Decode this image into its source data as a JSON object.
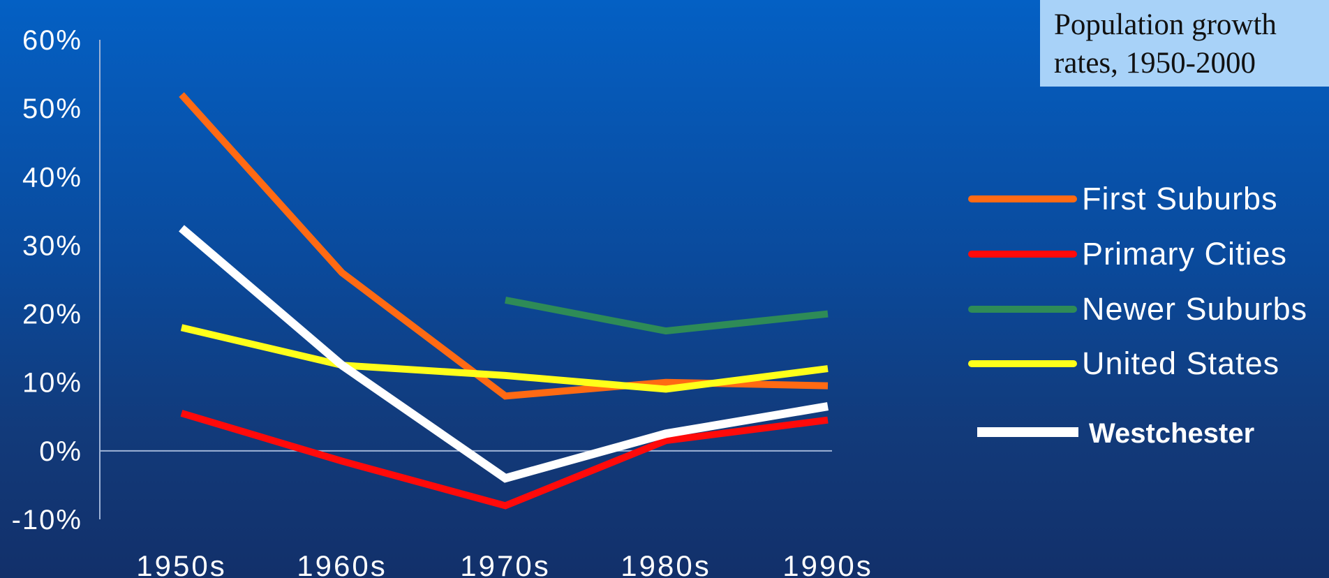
{
  "chart_data": {
    "type": "line",
    "title": "Population growth rates, 1950-2000",
    "title_lines": [
      "Population growth",
      "rates, 1950-2000"
    ],
    "categories": [
      "1950s",
      "1960s",
      "1970s",
      "1980s",
      "1990s"
    ],
    "ylim": [
      -10,
      60
    ],
    "yticks": [
      60,
      50,
      40,
      30,
      20,
      10,
      0,
      -10
    ],
    "ytick_labels": [
      "60%",
      "50%",
      "40%",
      "30%",
      "20%",
      "10%",
      "0%",
      "-10%"
    ],
    "legend_position": "right",
    "series": [
      {
        "name": "First Suburbs",
        "color": "#ff6a13",
        "values": [
          52,
          26,
          8,
          10,
          9.5
        ],
        "bold": false
      },
      {
        "name": "Primary Cities",
        "color": "#ff0a0a",
        "values": [
          5.5,
          -1.5,
          -8,
          1.5,
          4.5
        ],
        "bold": false
      },
      {
        "name": "Newer Suburbs",
        "color": "#2e8b57",
        "values": [
          null,
          null,
          22,
          17.5,
          20
        ],
        "bold": false
      },
      {
        "name": "United States",
        "color": "#ffff1a",
        "values": [
          18,
          12.5,
          11,
          9,
          12
        ],
        "bold": false
      },
      {
        "name": "Westchester",
        "color": "#ffffff",
        "values": [
          32.5,
          12.5,
          -4,
          2.5,
          6.5
        ],
        "bold": true
      }
    ]
  }
}
